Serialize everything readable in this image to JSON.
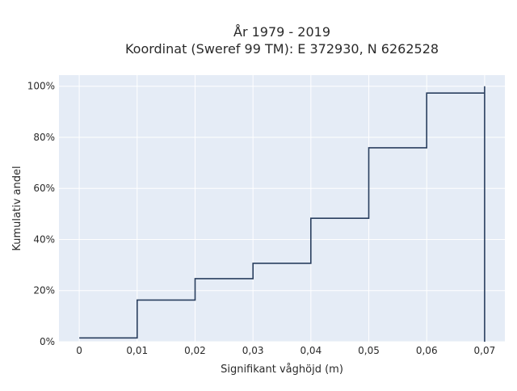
{
  "chart_data": {
    "type": "line",
    "step": "post",
    "title_line1": "År 1979 - 2019",
    "title_line2": "Koordinat (Sweref 99 TM): E 372930, N 6262528",
    "xlabel": "Signifikant våghöjd (m)",
    "ylabel": "Kumulativ andel",
    "xlim": [
      -0.0035,
      0.0735
    ],
    "ylim": [
      0,
      1.0433
    ],
    "x_ticks": [
      0,
      0.01,
      0.02,
      0.03,
      0.04,
      0.05,
      0.06,
      0.07
    ],
    "x_tick_labels": [
      "0",
      "0,01",
      "0,02",
      "0,03",
      "0,04",
      "0,05",
      "0,06",
      "0,07"
    ],
    "y_ticks": [
      0,
      0.2,
      0.4,
      0.6,
      0.8,
      1.0
    ],
    "y_tick_labels": [
      "0%",
      "20%",
      "40%",
      "60%",
      "80%",
      "100%"
    ],
    "grid": true,
    "colors": {
      "line": "#2a3f5f",
      "plot_bg": "#e5ecf6",
      "grid": "#ffffff"
    },
    "series": [
      {
        "x": [
          0,
          0.01,
          0.01,
          0.02,
          0.02,
          0.03,
          0.03,
          0.04,
          0.04,
          0.05,
          0.05,
          0.06,
          0.06,
          0.07,
          0.07,
          0.07
        ],
        "y": [
          0.015,
          0.015,
          0.163,
          0.163,
          0.247,
          0.247,
          0.307,
          0.307,
          0.483,
          0.483,
          0.759,
          0.759,
          0.973,
          0.973,
          1.0,
          0.0
        ]
      }
    ]
  }
}
